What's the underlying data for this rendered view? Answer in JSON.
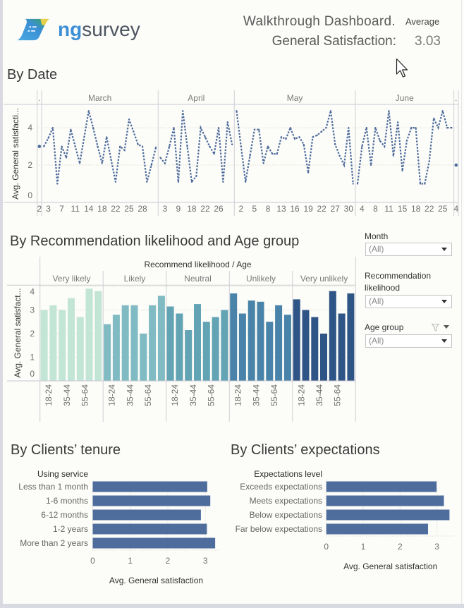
{
  "header": {
    "logo": {
      "prefix": "ng",
      "suffix": "survey"
    },
    "title": "Walkthrough Dashboard.",
    "metric_caption": "Average",
    "metric_label": "General Satisfaction:",
    "metric_value": "3.03"
  },
  "filters": [
    {
      "label": "Month",
      "value": "(All)"
    },
    {
      "label": "Recommendation likelihood",
      "value": "(All)"
    },
    {
      "label": "Age group",
      "value": "(All)",
      "icons": [
        "funnel-icon",
        "caret-down-icon"
      ]
    }
  ],
  "colors": {
    "line": "#4d6b9a",
    "hbar": "#4e6d9d",
    "logo_blue": "#3c8fd4",
    "logo_yellow": "#e6d24a"
  },
  "chart_data": [
    {
      "type": "line",
      "title": "By Date",
      "ylabel": "Avg. General satisfacti...",
      "ylim": [
        0,
        5.25
      ],
      "yticks": [
        0,
        2,
        4
      ],
      "grid": true,
      "panes": [
        {
          "header": ".",
          "values": [
            3.0
          ],
          "ticks": [
            {
              "label": "2",
              "index": 0
            }
          ]
        },
        {
          "header": "March",
          "values": [
            3.0,
            3.45,
            4.0,
            1.0,
            3.0,
            2.4,
            3.9,
            3.0,
            2.1,
            3.5,
            4.9,
            4.0,
            3.0,
            2.1,
            3.5,
            2.3,
            1.1,
            3.0,
            2.8,
            4.45,
            3.8,
            3.1,
            3.0,
            1.1,
            2.0,
            2.95
          ],
          "ticks": [
            {
              "label": "3",
              "index": 1
            },
            {
              "label": "7",
              "index": 4
            },
            {
              "label": "11",
              "index": 7
            },
            {
              "label": "14",
              "index": 10
            },
            {
              "label": "18",
              "index": 13
            },
            {
              "label": "22",
              "index": 16
            },
            {
              "label": "25",
              "index": 19
            },
            {
              "label": "28",
              "index": 22
            }
          ]
        },
        {
          "header": "April",
          "values": [
            2.4,
            2.1,
            3.0,
            4.0,
            1.1,
            4.9,
            3.0,
            1.1,
            1.4,
            4.0,
            3.5,
            3.0,
            2.6,
            4.0,
            1.1,
            4.3,
            3.1
          ],
          "ticks": [
            {
              "label": "3",
              "index": 1
            },
            {
              "label": "9",
              "index": 4
            },
            {
              "label": "18",
              "index": 7
            },
            {
              "label": "22",
              "index": 10
            },
            {
              "label": "26",
              "index": 13
            }
          ]
        },
        {
          "header": "May",
          "values": [
            4.9,
            3.0,
            1.1,
            2.5,
            3.9,
            3.9,
            2.1,
            3.0,
            2.6,
            2.6,
            3.5,
            3.4,
            4.0,
            3.4,
            3.5,
            3.1,
            1.6,
            3.5,
            3.6,
            3.8,
            4.0,
            4.9,
            3.1,
            2.5,
            2.0,
            4.0,
            1.0
          ],
          "ticks": [
            {
              "label": "2",
              "index": 1
            },
            {
              "label": "5",
              "index": 4
            },
            {
              "label": "8",
              "index": 7
            },
            {
              "label": "13",
              "index": 10
            },
            {
              "label": "16",
              "index": 13
            },
            {
              "label": "19",
              "index": 16
            },
            {
              "label": "22",
              "index": 19
            },
            {
              "label": "27",
              "index": 22
            },
            {
              "label": "30",
              "index": 25
            }
          ]
        },
        {
          "header": "June",
          "values": [
            1.0,
            3.0,
            4.0,
            2.0,
            4.0,
            3.3,
            3.0,
            4.9,
            2.5,
            4.3,
            1.7,
            3.3,
            4.0,
            4.0,
            1.0,
            1.0,
            2.2,
            4.5,
            4.0,
            4.9,
            4.0,
            4.0
          ],
          "ticks": [
            {
              "label": "4",
              "index": 1
            },
            {
              "label": "8",
              "index": 4
            },
            {
              "label": "11",
              "index": 7
            },
            {
              "label": "15",
              "index": 10
            },
            {
              "label": "18",
              "index": 13
            },
            {
              "label": "22",
              "index": 16
            },
            {
              "label": "25",
              "index": 19
            }
          ]
        },
        {
          "header": ".",
          "values": [
            2.0
          ],
          "ticks": [
            {
              "label": "4",
              "index": 0
            }
          ]
        }
      ]
    },
    {
      "type": "bar",
      "title": "By Recommendation likelihood and Age group",
      "header": "Recommend likelihood / Age",
      "ylabel": "Avg. General satisfact...",
      "ylim": [
        0,
        4.05
      ],
      "yticks": [
        0,
        1,
        2,
        3,
        4
      ],
      "grid": true,
      "age_tick_labels": [
        {
          "label": "18-24",
          "index": 1
        },
        {
          "label": "35-44",
          "index": 3
        },
        {
          "label": "55-64",
          "index": 5
        }
      ],
      "groups": [
        {
          "name": "Very likely",
          "color": "#c2e5d6",
          "values": [
            3.0,
            3.2,
            3.0,
            3.5,
            2.7,
            3.9,
            3.8
          ]
        },
        {
          "name": "Likely",
          "color": "#80bbc3",
          "values": [
            2.4,
            2.8,
            3.2,
            3.2,
            2.0,
            3.2,
            3.6
          ]
        },
        {
          "name": "Neutral",
          "color": "#62a3b4",
          "values": [
            3.15,
            2.85,
            2.15,
            3.25,
            2.5,
            2.7,
            3.0
          ]
        },
        {
          "name": "Unlikely",
          "color": "#4983a9",
          "values": [
            3.7,
            2.85,
            3.4,
            3.35,
            2.5,
            3.2,
            2.8
          ]
        },
        {
          "name": "Very unlikely",
          "color": "#2f5586",
          "values": [
            3.45,
            3.0,
            2.7,
            2.0,
            3.8,
            2.85,
            3.7
          ]
        }
      ]
    },
    {
      "type": "bar",
      "orientation": "horizontal",
      "title": "By Clients’ tenure",
      "category_header": "Using service",
      "categories": [
        "Less than 1 month",
        "1-6 months",
        "6-12 months",
        "1-2 years",
        "More than 2 years"
      ],
      "values": [
        3.05,
        3.13,
        2.88,
        3.04,
        3.26
      ],
      "xticks": [
        0,
        1,
        2,
        3
      ],
      "xlim": [
        0,
        3.38
      ],
      "xlabel": "Avg. General satisfaction"
    },
    {
      "type": "bar",
      "orientation": "horizontal",
      "title": "By Clients’ expectations",
      "category_header": "Expectations level",
      "categories": [
        "Exceeds expectations",
        "Meets expectations",
        "Below expectations",
        "Far below expectations"
      ],
      "values": [
        2.99,
        3.19,
        3.34,
        2.76
      ],
      "xticks": [
        0,
        1,
        2,
        3
      ],
      "xlim": [
        0,
        3.48
      ],
      "xlabel": "Avg. General satisfaction"
    }
  ]
}
